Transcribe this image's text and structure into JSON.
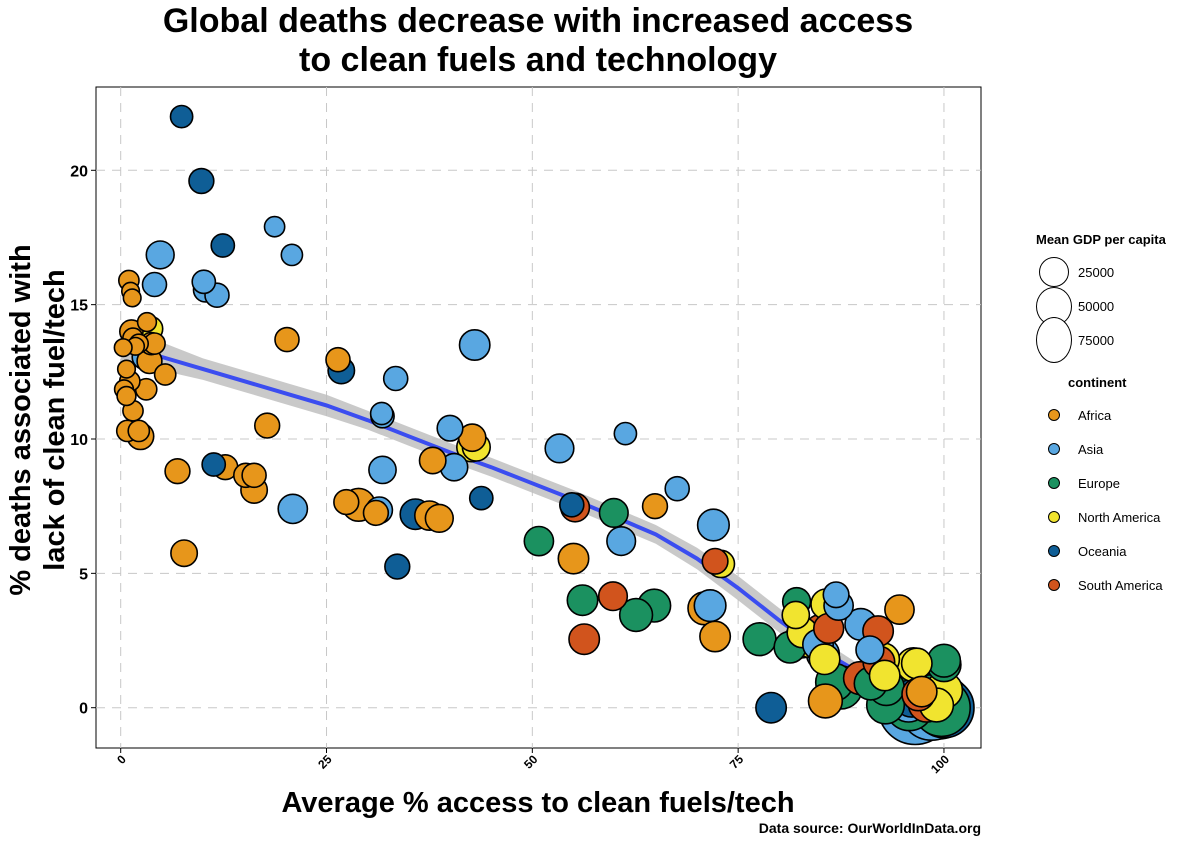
{
  "title_line1": "Global deaths decrease with increased access",
  "title_line2": "to clean fuels and technology",
  "source": "Data source: OurWorldInData.org",
  "chart_data": {
    "type": "scatter",
    "title": "Global deaths decrease with increased access to clean fuels and technology",
    "xlabel": "Average % access to clean fuels/tech",
    "ylabel": "% deaths associated with lack of clean fuel/tech",
    "xlim": [
      -3,
      104.5
    ],
    "ylim": [
      -1.5,
      23.1
    ],
    "x_ticks": [
      0,
      25,
      50,
      75,
      100
    ],
    "x_tick_labels": [
      "0",
      "25",
      "50",
      "75",
      "100"
    ],
    "y_ticks": [
      0,
      5,
      10,
      15,
      20
    ],
    "y_tick_labels": [
      "0",
      "5",
      "10",
      "15",
      "20"
    ],
    "grid": true,
    "legend_placement": "right",
    "size_legend": {
      "title": "Mean GDP per capita",
      "entries": [
        {
          "label": "25000",
          "gdp": 25000
        },
        {
          "label": "50000",
          "gdp": 50000
        },
        {
          "label": "75000",
          "gdp": 75000
        }
      ]
    },
    "color_legend": {
      "title": "continent",
      "entries": [
        {
          "label": "Africa",
          "color": "#E7961B"
        },
        {
          "label": "Asia",
          "color": "#59A7E1"
        },
        {
          "label": "Europe",
          "color": "#1B9160"
        },
        {
          "label": "North America",
          "color": "#F1E42F"
        },
        {
          "label": "Oceania",
          "color": "#0F5E96"
        },
        {
          "label": "South America",
          "color": "#D1541D"
        }
      ]
    },
    "smooth_line": {
      "color": "#3B4DF0",
      "x": [
        0,
        5,
        10,
        15,
        20,
        25,
        30,
        35,
        40,
        45,
        50,
        55,
        60,
        65,
        70,
        75,
        80,
        85,
        90,
        95,
        100
      ],
      "y": [
        13.45,
        13.05,
        12.6,
        12.15,
        11.7,
        11.25,
        10.7,
        10.1,
        9.5,
        8.95,
        8.35,
        7.75,
        7.1,
        6.45,
        5.55,
        4.45,
        3.25,
        2.15,
        1.25,
        0.55,
        0.0
      ],
      "band_low": [
        12.8,
        12.55,
        12.2,
        11.75,
        11.3,
        10.85,
        10.35,
        9.75,
        9.15,
        8.6,
        8.0,
        7.4,
        6.75,
        6.1,
        5.15,
        4.0,
        2.8,
        1.8,
        0.95,
        0.25,
        -0.35
      ],
      "band_high": [
        14.15,
        13.6,
        13.0,
        12.55,
        12.1,
        11.65,
        11.05,
        10.45,
        9.85,
        9.3,
        8.7,
        8.1,
        7.45,
        6.8,
        5.95,
        4.9,
        3.7,
        2.55,
        1.55,
        0.85,
        0.35
      ]
    },
    "points": [
      {
        "x": 7.4,
        "y": 22.0,
        "continent": "Oceania",
        "gdp": 3500
      },
      {
        "x": 9.8,
        "y": 19.6,
        "continent": "Oceania",
        "gdp": 5000
      },
      {
        "x": 18.7,
        "y": 17.9,
        "continent": "Asia",
        "gdp": 2500
      },
      {
        "x": 12.4,
        "y": 17.2,
        "continent": "Oceania",
        "gdp": 4000
      },
      {
        "x": 4.8,
        "y": 16.85,
        "continent": "Asia",
        "gdp": 7000
      },
      {
        "x": 20.8,
        "y": 16.85,
        "continent": "Asia",
        "gdp": 3000
      },
      {
        "x": 1.0,
        "y": 15.9,
        "continent": "Africa",
        "gdp": 2500
      },
      {
        "x": 10.1,
        "y": 15.85,
        "continent": "Asia",
        "gdp": 4000
      },
      {
        "x": 4.1,
        "y": 15.75,
        "continent": "Asia",
        "gdp": 4500
      },
      {
        "x": 10.3,
        "y": 15.55,
        "continent": "Asia",
        "gdp": 4500
      },
      {
        "x": 1.2,
        "y": 15.5,
        "continent": "Africa",
        "gdp": 1500
      },
      {
        "x": 11.7,
        "y": 15.35,
        "continent": "Asia",
        "gdp": 4500
      },
      {
        "x": 1.4,
        "y": 15.25,
        "continent": "Africa",
        "gdp": 1500
      },
      {
        "x": 3.2,
        "y": 14.35,
        "continent": "Africa",
        "gdp": 2000
      },
      {
        "x": 3.6,
        "y": 14.1,
        "continent": "North America",
        "gdp": 5000
      },
      {
        "x": 1.3,
        "y": 14.0,
        "continent": "Africa",
        "gdp": 4000
      },
      {
        "x": 1.5,
        "y": 13.75,
        "continent": "Africa",
        "gdp": 2500
      },
      {
        "x": 20.2,
        "y": 13.7,
        "continent": "Africa",
        "gdp": 4500
      },
      {
        "x": 2.2,
        "y": 13.55,
        "continent": "Africa",
        "gdp": 2000
      },
      {
        "x": 3.7,
        "y": 13.55,
        "continent": "Africa",
        "gdp": 3500
      },
      {
        "x": 43.0,
        "y": 13.5,
        "continent": "Asia",
        "gdp": 9000
      },
      {
        "x": 1.8,
        "y": 13.45,
        "continent": "Africa",
        "gdp": 1500
      },
      {
        "x": 0.3,
        "y": 13.4,
        "continent": "Africa",
        "gdp": 1500
      },
      {
        "x": 4.1,
        "y": 13.55,
        "continent": "Africa",
        "gdp": 3000
      },
      {
        "x": 2.9,
        "y": 13.05,
        "continent": "Asia",
        "gdp": 5000
      },
      {
        "x": 3.5,
        "y": 12.9,
        "continent": "Africa",
        "gdp": 5000
      },
      {
        "x": 26.4,
        "y": 12.95,
        "continent": "Africa",
        "gdp": 4500
      },
      {
        "x": 26.8,
        "y": 12.55,
        "continent": "Oceania",
        "gdp": 6000
      },
      {
        "x": 0.7,
        "y": 12.6,
        "continent": "Africa",
        "gdp": 1500
      },
      {
        "x": 5.4,
        "y": 12.4,
        "continent": "Africa",
        "gdp": 3000
      },
      {
        "x": 33.4,
        "y": 12.25,
        "continent": "Asia",
        "gdp": 4500
      },
      {
        "x": 1.1,
        "y": 12.15,
        "continent": "Africa",
        "gdp": 2500
      },
      {
        "x": 3.1,
        "y": 11.85,
        "continent": "Africa",
        "gdp": 3000
      },
      {
        "x": 0.4,
        "y": 11.85,
        "continent": "Africa",
        "gdp": 2000
      },
      {
        "x": 0.7,
        "y": 11.6,
        "continent": "Africa",
        "gdp": 2000
      },
      {
        "x": 1.5,
        "y": 11.05,
        "continent": "Africa",
        "gdp": 2500
      },
      {
        "x": 31.7,
        "y": 10.95,
        "continent": "Asia",
        "gdp": 3500
      },
      {
        "x": 31.8,
        "y": 10.85,
        "continent": "Asia",
        "gdp": 4000
      },
      {
        "x": 17.8,
        "y": 10.5,
        "continent": "Africa",
        "gdp": 5000
      },
      {
        "x": 40.0,
        "y": 10.4,
        "continent": "Asia",
        "gdp": 5500
      },
      {
        "x": 0.8,
        "y": 10.3,
        "continent": "Africa",
        "gdp": 3000
      },
      {
        "x": 2.2,
        "y": 10.3,
        "continent": "Africa",
        "gdp": 3000
      },
      {
        "x": 61.3,
        "y": 10.2,
        "continent": "Asia",
        "gdp": 3500
      },
      {
        "x": 2.4,
        "y": 10.1,
        "continent": "Africa",
        "gdp": 6000
      },
      {
        "x": 42.7,
        "y": 10.05,
        "continent": "Africa",
        "gdp": 6500
      },
      {
        "x": 42.6,
        "y": 9.7,
        "continent": "North America",
        "gdp": 8000
      },
      {
        "x": 43.2,
        "y": 9.7,
        "continent": "North America",
        "gdp": 7000
      },
      {
        "x": 53.3,
        "y": 9.65,
        "continent": "Asia",
        "gdp": 7500
      },
      {
        "x": 37.9,
        "y": 9.2,
        "continent": "Africa",
        "gdp": 6000
      },
      {
        "x": 11.3,
        "y": 9.05,
        "continent": "Oceania",
        "gdp": 4000
      },
      {
        "x": 40.5,
        "y": 8.95,
        "continent": "Asia",
        "gdp": 6500
      },
      {
        "x": 12.7,
        "y": 8.95,
        "continent": "Africa",
        "gdp": 5000
      },
      {
        "x": 31.8,
        "y": 8.85,
        "continent": "Asia",
        "gdp": 6500
      },
      {
        "x": 6.9,
        "y": 8.8,
        "continent": "Africa",
        "gdp": 5000
      },
      {
        "x": 15.2,
        "y": 8.65,
        "continent": "Africa",
        "gdp": 4500
      },
      {
        "x": 16.2,
        "y": 8.65,
        "continent": "Africa",
        "gdp": 4500
      },
      {
        "x": 67.6,
        "y": 8.15,
        "continent": "Asia",
        "gdp": 4500
      },
      {
        "x": 16.2,
        "y": 8.1,
        "continent": "Africa",
        "gdp": 6000
      },
      {
        "x": 43.8,
        "y": 7.8,
        "continent": "Oceania",
        "gdp": 4000
      },
      {
        "x": 27.4,
        "y": 7.65,
        "continent": "Africa",
        "gdp": 5000
      },
      {
        "x": 28.9,
        "y": 7.55,
        "continent": "Africa",
        "gdp": 11000
      },
      {
        "x": 54.8,
        "y": 7.55,
        "continent": "Oceania",
        "gdp": 4500
      },
      {
        "x": 55.2,
        "y": 7.45,
        "continent": "South America",
        "gdp": 7500
      },
      {
        "x": 64.9,
        "y": 7.5,
        "continent": "Africa",
        "gdp": 5000
      },
      {
        "x": 20.9,
        "y": 7.4,
        "continent": "Asia",
        "gdp": 8000
      },
      {
        "x": 31.4,
        "y": 7.35,
        "continent": "Asia",
        "gdp": 6000
      },
      {
        "x": 31.0,
        "y": 7.25,
        "continent": "Africa",
        "gdp": 5000
      },
      {
        "x": 59.9,
        "y": 7.25,
        "continent": "Europe",
        "gdp": 7500
      },
      {
        "x": 35.8,
        "y": 7.2,
        "continent": "Oceania",
        "gdp": 9000
      },
      {
        "x": 37.5,
        "y": 7.15,
        "continent": "Africa",
        "gdp": 8000
      },
      {
        "x": 38.7,
        "y": 7.05,
        "continent": "Africa",
        "gdp": 7000
      },
      {
        "x": 72.0,
        "y": 6.8,
        "continent": "Asia",
        "gdp": 10000
      },
      {
        "x": 60.8,
        "y": 6.2,
        "continent": "Asia",
        "gdp": 7500
      },
      {
        "x": 50.8,
        "y": 6.2,
        "continent": "Europe",
        "gdp": 8000
      },
      {
        "x": 7.7,
        "y": 5.75,
        "continent": "Africa",
        "gdp": 6000
      },
      {
        "x": 55.0,
        "y": 5.55,
        "continent": "Africa",
        "gdp": 9000
      },
      {
        "x": 72.2,
        "y": 5.45,
        "continent": "South America",
        "gdp": 5500
      },
      {
        "x": 72.9,
        "y": 5.35,
        "continent": "North America",
        "gdp": 6500
      },
      {
        "x": 33.6,
        "y": 5.25,
        "continent": "Oceania",
        "gdp": 5000
      },
      {
        "x": 86.9,
        "y": 4.2,
        "continent": "Asia",
        "gdp": 5500
      },
      {
        "x": 59.8,
        "y": 4.15,
        "continent": "South America",
        "gdp": 7500
      },
      {
        "x": 56.1,
        "y": 4.0,
        "continent": "Europe",
        "gdp": 9000
      },
      {
        "x": 82.1,
        "y": 3.95,
        "continent": "Europe",
        "gdp": 7000
      },
      {
        "x": 85.7,
        "y": 3.85,
        "continent": "North America",
        "gdp": 9000
      },
      {
        "x": 64.8,
        "y": 3.8,
        "continent": "Europe",
        "gdp": 11000
      },
      {
        "x": 71.6,
        "y": 3.8,
        "continent": "Asia",
        "gdp": 10000
      },
      {
        "x": 87.2,
        "y": 3.8,
        "continent": "Asia",
        "gdp": 8000
      },
      {
        "x": 70.9,
        "y": 3.7,
        "continent": "Africa",
        "gdp": 11000
      },
      {
        "x": 94.6,
        "y": 3.65,
        "continent": "Africa",
        "gdp": 8000
      },
      {
        "x": 62.6,
        "y": 3.45,
        "continent": "Europe",
        "gdp": 11000
      },
      {
        "x": 82.0,
        "y": 3.45,
        "continent": "North America",
        "gdp": 6500
      },
      {
        "x": 89.9,
        "y": 3.1,
        "continent": "Asia",
        "gdp": 10000
      },
      {
        "x": 86.0,
        "y": 2.95,
        "continent": "South America",
        "gdp": 8500
      },
      {
        "x": 92.0,
        "y": 2.85,
        "continent": "South America",
        "gdp": 9000
      },
      {
        "x": 85.0,
        "y": 2.85,
        "continent": "South America",
        "gdp": 11000
      },
      {
        "x": 82.8,
        "y": 2.8,
        "continent": "North America",
        "gdp": 9000
      },
      {
        "x": 72.2,
        "y": 2.65,
        "continent": "Africa",
        "gdp": 9000
      },
      {
        "x": 56.3,
        "y": 2.55,
        "continent": "South America",
        "gdp": 9000
      },
      {
        "x": 77.6,
        "y": 2.55,
        "continent": "Europe",
        "gdp": 11000
      },
      {
        "x": 82.7,
        "y": 2.5,
        "continent": "North America",
        "gdp": 13000
      },
      {
        "x": 83.8,
        "y": 2.45,
        "continent": "North America",
        "gdp": 10000
      },
      {
        "x": 84.7,
        "y": 2.35,
        "continent": "Asia",
        "gdp": 9000
      },
      {
        "x": 81.3,
        "y": 2.25,
        "continent": "Europe",
        "gdp": 10000
      },
      {
        "x": 91.0,
        "y": 2.15,
        "continent": "Asia",
        "gdp": 7000
      },
      {
        "x": 85.3,
        "y": 2.0,
        "continent": "Asia",
        "gdp": 11000
      },
      {
        "x": 85.5,
        "y": 1.8,
        "continent": "North America",
        "gdp": 9000
      },
      {
        "x": 92.6,
        "y": 1.8,
        "continent": "North America",
        "gdp": 11000
      },
      {
        "x": 100.0,
        "y": 1.75,
        "continent": "Europe",
        "gdp": 11000
      },
      {
        "x": 92.1,
        "y": 1.7,
        "continent": "South America",
        "gdp": 10000
      },
      {
        "x": 96.3,
        "y": 1.6,
        "continent": "North America",
        "gdp": 12000
      },
      {
        "x": 96.7,
        "y": 1.65,
        "continent": "North America",
        "gdp": 9000
      },
      {
        "x": 100.0,
        "y": 1.6,
        "continent": "Europe",
        "gdp": 12000
      },
      {
        "x": 92.8,
        "y": 1.2,
        "continent": "North America",
        "gdp": 9000
      },
      {
        "x": 89.8,
        "y": 1.1,
        "continent": "South America",
        "gdp": 11000
      },
      {
        "x": 86.7,
        "y": 0.95,
        "continent": "Europe",
        "gdp": 16000
      },
      {
        "x": 91.1,
        "y": 0.9,
        "continent": "Europe",
        "gdp": 11000
      },
      {
        "x": 87.5,
        "y": 0.75,
        "continent": "Europe",
        "gdp": 22000
      },
      {
        "x": 93.0,
        "y": 0.75,
        "continent": "Europe",
        "gdp": 14000
      },
      {
        "x": 92.8,
        "y": 0.7,
        "continent": "Europe",
        "gdp": 18000
      },
      {
        "x": 93.7,
        "y": 0.65,
        "continent": "Europe",
        "gdp": 20000
      },
      {
        "x": 97.3,
        "y": 0.6,
        "continent": "Africa",
        "gdp": 9000
      },
      {
        "x": 100.0,
        "y": 0.65,
        "continent": "North America",
        "gdp": 15000
      },
      {
        "x": 96.9,
        "y": 0.5,
        "continent": "South America",
        "gdp": 11000
      },
      {
        "x": 98.2,
        "y": 0.45,
        "continent": "Europe",
        "gdp": 20000
      },
      {
        "x": 96.1,
        "y": 0.35,
        "continent": "Oceania",
        "gdp": 16000
      },
      {
        "x": 85.6,
        "y": 0.25,
        "continent": "Africa",
        "gdp": 12000
      },
      {
        "x": 95.7,
        "y": 0.2,
        "continent": "Asia",
        "gdp": 18000
      },
      {
        "x": 97.9,
        "y": 0.15,
        "continent": "South America",
        "gdp": 15000
      },
      {
        "x": 92.9,
        "y": 0.1,
        "continent": "Europe",
        "gdp": 16000
      },
      {
        "x": 99.1,
        "y": 0.1,
        "continent": "North America",
        "gdp": 12000
      },
      {
        "x": 95.8,
        "y": 0.05,
        "continent": "Europe",
        "gdp": 30000
      },
      {
        "x": 99.4,
        "y": 0.05,
        "continent": "Europe",
        "gdp": 60000
      },
      {
        "x": 79.0,
        "y": 0.0,
        "continent": "Oceania",
        "gdp": 9000
      },
      {
        "x": 96.5,
        "y": 0.0,
        "continent": "Asia",
        "gdp": 80000
      },
      {
        "x": 98.5,
        "y": 0.0,
        "continent": "Asia",
        "gdp": 60000
      },
      {
        "x": 99.7,
        "y": 0.0,
        "continent": "Europe",
        "gdp": 45000
      },
      {
        "x": 100.0,
        "y": 0.0,
        "continent": "Oceania",
        "gdp": 50000
      }
    ]
  }
}
